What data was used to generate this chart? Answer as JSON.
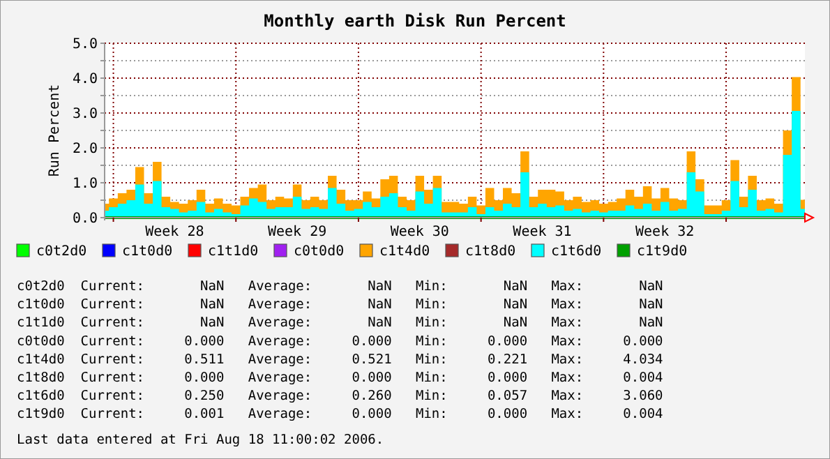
{
  "chart_data": {
    "type": "area",
    "title": "Monthly earth Disk Run Percent",
    "ylabel": "Run Percent",
    "categories": [
      null,
      null,
      null,
      null,
      null,
      null,
      null,
      null,
      "Week 28",
      null,
      null,
      null,
      null,
      null,
      null,
      null,
      null,
      null,
      null,
      null,
      null,
      null,
      "Week 29",
      null,
      null,
      null,
      null,
      null,
      null,
      null,
      null,
      null,
      null,
      null,
      null,
      null,
      "Week 30",
      null,
      null,
      null,
      null,
      null,
      null,
      null,
      null,
      null,
      null,
      null,
      null,
      null,
      "Week 31",
      null,
      null,
      null,
      null,
      null,
      null,
      null,
      null,
      null,
      null,
      null,
      null,
      null,
      "Week 32",
      null,
      null,
      null,
      null,
      null,
      null,
      null,
      null,
      null,
      null,
      null,
      null,
      null,
      null,
      null,
      null
    ],
    "ylim": [
      0,
      5
    ],
    "yticks": [
      {
        "value": 0,
        "label": "0.0"
      },
      {
        "value": 0.5,
        "label": null
      },
      {
        "value": 1,
        "label": "1.0"
      },
      {
        "value": 1.5,
        "label": null
      },
      {
        "value": 2,
        "label": "2.0"
      },
      {
        "value": 2.5,
        "label": null
      },
      {
        "value": 3,
        "label": "3.0"
      },
      {
        "value": 3.5,
        "label": null
      },
      {
        "value": 4,
        "label": "4.0"
      },
      {
        "value": 4.5,
        "label": null
      },
      {
        "value": 5,
        "label": "5.0"
      }
    ],
    "grid": true,
    "legend": "bottom",
    "series": [
      {
        "name": "c0t2d0",
        "color": "#00ff00",
        "values": [
          null,
          null,
          null,
          null,
          null,
          null,
          null,
          null,
          null,
          null,
          null,
          null,
          null,
          null,
          null,
          null,
          null,
          null,
          null,
          null,
          null,
          null,
          null,
          null,
          null,
          null,
          null,
          null,
          null,
          null,
          null,
          null,
          null,
          null,
          null,
          null,
          null,
          null,
          null,
          null,
          null,
          null,
          null,
          null,
          null,
          null,
          null,
          null,
          null,
          null,
          null,
          null,
          null,
          null,
          null,
          null,
          null,
          null,
          null,
          null,
          null,
          null,
          null,
          null,
          null,
          null,
          null,
          null,
          null,
          null,
          null,
          null,
          null,
          null,
          null,
          null,
          null,
          null,
          null,
          null,
          null
        ]
      },
      {
        "name": "c1t0d0",
        "color": "#0000ff",
        "values": [
          null,
          null,
          null,
          null,
          null,
          null,
          null,
          null,
          null,
          null,
          null,
          null,
          null,
          null,
          null,
          null,
          null,
          null,
          null,
          null,
          null,
          null,
          null,
          null,
          null,
          null,
          null,
          null,
          null,
          null,
          null,
          null,
          null,
          null,
          null,
          null,
          null,
          null,
          null,
          null,
          null,
          null,
          null,
          null,
          null,
          null,
          null,
          null,
          null,
          null,
          null,
          null,
          null,
          null,
          null,
          null,
          null,
          null,
          null,
          null,
          null,
          null,
          null,
          null,
          null,
          null,
          null,
          null,
          null,
          null,
          null,
          null,
          null,
          null,
          null,
          null,
          null,
          null,
          null,
          null,
          null
        ]
      },
      {
        "name": "c1t1d0",
        "color": "#ff0000",
        "values": [
          null,
          null,
          null,
          null,
          null,
          null,
          null,
          null,
          null,
          null,
          null,
          null,
          null,
          null,
          null,
          null,
          null,
          null,
          null,
          null,
          null,
          null,
          null,
          null,
          null,
          null,
          null,
          null,
          null,
          null,
          null,
          null,
          null,
          null,
          null,
          null,
          null,
          null,
          null,
          null,
          null,
          null,
          null,
          null,
          null,
          null,
          null,
          null,
          null,
          null,
          null,
          null,
          null,
          null,
          null,
          null,
          null,
          null,
          null,
          null,
          null,
          null,
          null,
          null,
          null,
          null,
          null,
          null,
          null,
          null,
          null,
          null,
          null,
          null,
          null,
          null,
          null,
          null,
          null,
          null,
          null
        ]
      },
      {
        "name": "c0t0d0",
        "color": "#a020f0",
        "values": [
          null,
          null,
          null,
          null,
          null,
          null,
          null,
          null,
          null,
          null,
          null,
          null,
          null,
          null,
          null,
          null,
          null,
          null,
          null,
          null,
          null,
          null,
          null,
          null,
          null,
          null,
          null,
          null,
          null,
          null,
          null,
          null,
          null,
          null,
          null,
          null,
          null,
          null,
          null,
          null,
          null,
          null,
          null,
          null,
          null,
          null,
          null,
          null,
          null,
          null,
          null,
          null,
          null,
          null,
          null,
          null,
          null,
          null,
          null,
          null,
          null,
          null,
          null,
          null,
          null,
          null,
          null,
          null,
          null,
          null,
          null,
          null,
          null,
          null,
          null,
          null,
          null,
          null,
          null,
          null,
          null
        ]
      },
      {
        "name": "c1t4d0",
        "color": "#ffa500",
        "values": [
          0.4,
          0.55,
          0.7,
          0.8,
          1.45,
          0.7,
          1.6,
          0.6,
          0.45,
          0.4,
          0.5,
          0.8,
          0.4,
          0.55,
          0.4,
          0.35,
          0.6,
          0.85,
          0.95,
          0.5,
          0.6,
          0.55,
          0.95,
          0.5,
          0.6,
          0.5,
          1.2,
          0.8,
          0.5,
          0.5,
          0.75,
          0.55,
          1.1,
          1.2,
          0.6,
          0.5,
          1.2,
          0.8,
          1.2,
          0.45,
          0.45,
          0.4,
          0.6,
          0.35,
          0.85,
          0.5,
          0.85,
          0.7,
          1.9,
          0.6,
          0.8,
          0.8,
          0.75,
          0.5,
          0.6,
          0.45,
          0.5,
          0.4,
          0.45,
          0.55,
          0.8,
          0.6,
          0.9,
          0.55,
          0.85,
          0.55,
          0.5,
          1.9,
          1.1,
          0.35,
          0.35,
          0.5,
          1.65,
          0.6,
          1.2,
          0.5,
          0.55,
          0.4,
          2.5,
          4.03,
          0.51
        ]
      },
      {
        "name": "c1t8d0",
        "color": "#a52a2a",
        "values": [
          null,
          null,
          null,
          null,
          null,
          null,
          null,
          null,
          null,
          null,
          null,
          null,
          null,
          null,
          null,
          null,
          null,
          null,
          null,
          null,
          null,
          null,
          null,
          null,
          null,
          null,
          null,
          null,
          null,
          null,
          null,
          null,
          null,
          null,
          null,
          null,
          null,
          null,
          null,
          null,
          null,
          null,
          null,
          null,
          null,
          null,
          null,
          null,
          null,
          null,
          null,
          null,
          null,
          null,
          null,
          null,
          null,
          null,
          null,
          null,
          null,
          null,
          null,
          null,
          null,
          null,
          null,
          null,
          null,
          null,
          null,
          null,
          null,
          null,
          null,
          null,
          null,
          null,
          null,
          null,
          null
        ]
      },
      {
        "name": "c1t6d0",
        "color": "#00ffff",
        "values": [
          0.2,
          0.3,
          0.4,
          0.5,
          0.95,
          0.4,
          1.05,
          0.3,
          0.25,
          0.15,
          0.2,
          0.45,
          0.15,
          0.25,
          0.15,
          0.1,
          0.35,
          0.55,
          0.45,
          0.25,
          0.3,
          0.3,
          0.6,
          0.25,
          0.3,
          0.25,
          0.85,
          0.4,
          0.2,
          0.25,
          0.45,
          0.3,
          0.6,
          0.7,
          0.3,
          0.2,
          0.75,
          0.4,
          0.85,
          0.15,
          0.15,
          0.15,
          0.3,
          0.1,
          0.3,
          0.2,
          0.4,
          0.3,
          1.3,
          0.3,
          0.4,
          0.3,
          0.35,
          0.2,
          0.25,
          0.15,
          0.2,
          0.15,
          0.2,
          0.2,
          0.35,
          0.25,
          0.4,
          0.2,
          0.45,
          0.2,
          0.25,
          1.3,
          0.75,
          0.1,
          0.1,
          0.2,
          1.05,
          0.3,
          0.8,
          0.2,
          0.25,
          0.15,
          1.8,
          3.06,
          0.25
        ]
      },
      {
        "name": "c1t9d0",
        "type": "line",
        "color": "#00a000",
        "values": [
          0,
          0,
          0,
          0,
          0,
          0,
          0,
          0,
          0,
          0,
          0,
          0,
          0,
          0,
          0,
          0,
          0,
          0,
          0,
          0,
          0,
          0,
          0,
          0,
          0,
          0,
          0,
          0,
          0,
          0,
          0,
          0,
          0,
          0,
          0,
          0,
          0,
          0,
          0,
          0,
          0,
          0,
          0,
          0,
          0,
          0,
          0,
          0,
          0,
          0,
          0,
          0,
          0,
          0,
          0,
          0,
          0,
          0,
          0,
          0,
          0,
          0,
          0,
          0,
          0,
          0,
          0,
          0,
          0,
          0,
          0,
          0,
          0,
          0,
          0,
          0,
          0,
          0,
          0,
          0,
          0
        ]
      }
    ],
    "annotations": [
      "c0t2d0  Current:       NaN   Average:       NaN   Min:       NaN   Max:       NaN",
      "c1t0d0  Current:       NaN   Average:       NaN   Min:       NaN   Max:       NaN",
      "c1t1d0  Current:       NaN   Average:       NaN   Min:       NaN   Max:       NaN",
      "c0t0d0  Current:     0.000   Average:     0.000   Min:     0.000   Max:     0.000",
      "c1t4d0  Current:     0.511   Average:     0.521   Min:     0.221   Max:     4.034",
      "c1t8d0  Current:     0.000   Average:     0.000   Min:     0.000   Max:     0.004",
      "c1t6d0  Current:     0.250   Average:     0.260   Min:     0.057   Max:     3.060",
      "c1t9d0  Current:     0.001   Average:     0.000   Min:     0.000   Max:     0.004",
      "Last data entered at Fri Aug 18 11:00:02 2006."
    ]
  }
}
